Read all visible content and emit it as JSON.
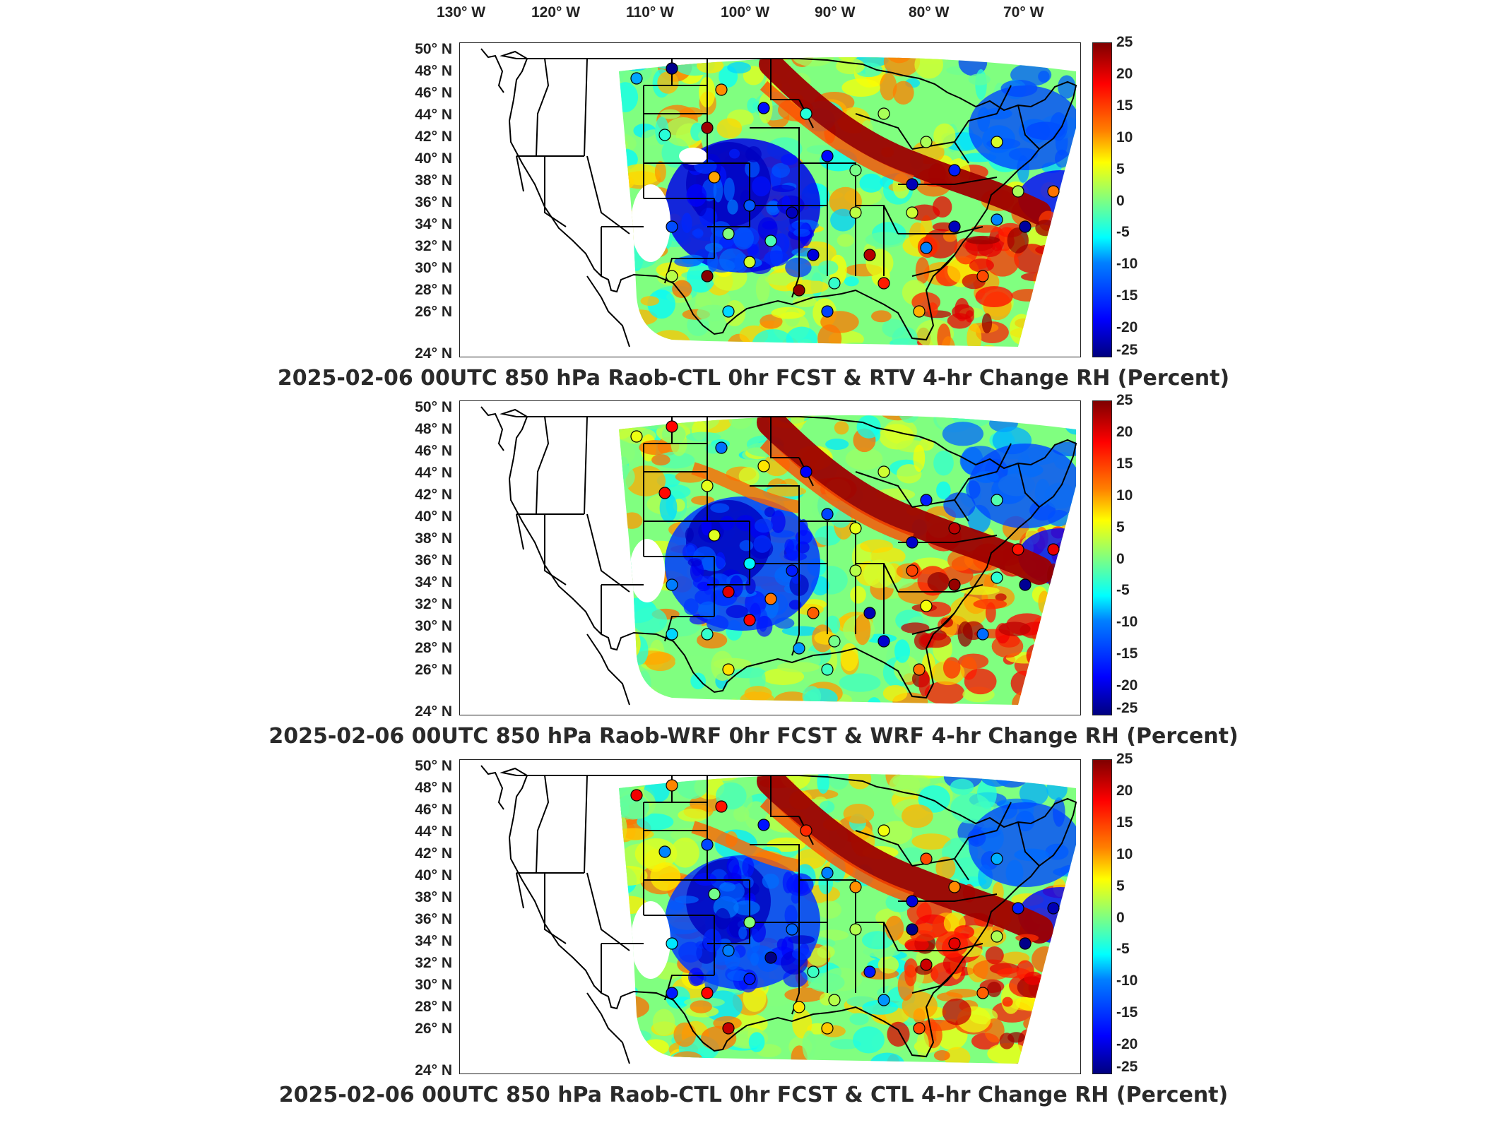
{
  "lon_labels": [
    "130° W",
    "120° W",
    "110° W",
    "100° W",
    "90° W",
    "80° W",
    "70° W"
  ],
  "lat_labels": [
    "50° N",
    "48° N",
    "46° N",
    "44° N",
    "42° N",
    "40° N",
    "38° N",
    "36° N",
    "34° N",
    "32° N",
    "30° N",
    "28° N",
    "26° N",
    "24° N"
  ],
  "colorbar": {
    "ticks": [
      "25",
      "20",
      "15",
      "10",
      "5",
      "0",
      "-5",
      "-10",
      "-15",
      "-20",
      "-25"
    ],
    "min": -25,
    "max": 25,
    "colormap": "jet"
  },
  "panels": [
    {
      "title": "2025-02-06 00UTC 850 hPa Raob-CTL 0hr FCST & RTV 4-hr Change RH (Percent)",
      "variant": 0
    },
    {
      "title": "2025-02-06 00UTC 850 hPa Raob-WRF 0hr FCST & WRF 4-hr Change RH (Percent)",
      "variant": 1
    },
    {
      "title": "2025-02-06 00UTC 850 hPa Raob-CTL 0hr FCST & CTL 4-hr Change RH (Percent)",
      "variant": 2
    }
  ],
  "colors": {
    "red_band": "#8b0000",
    "blue_region": "#1f3fd6",
    "green_background": "#7fe07a"
  }
}
